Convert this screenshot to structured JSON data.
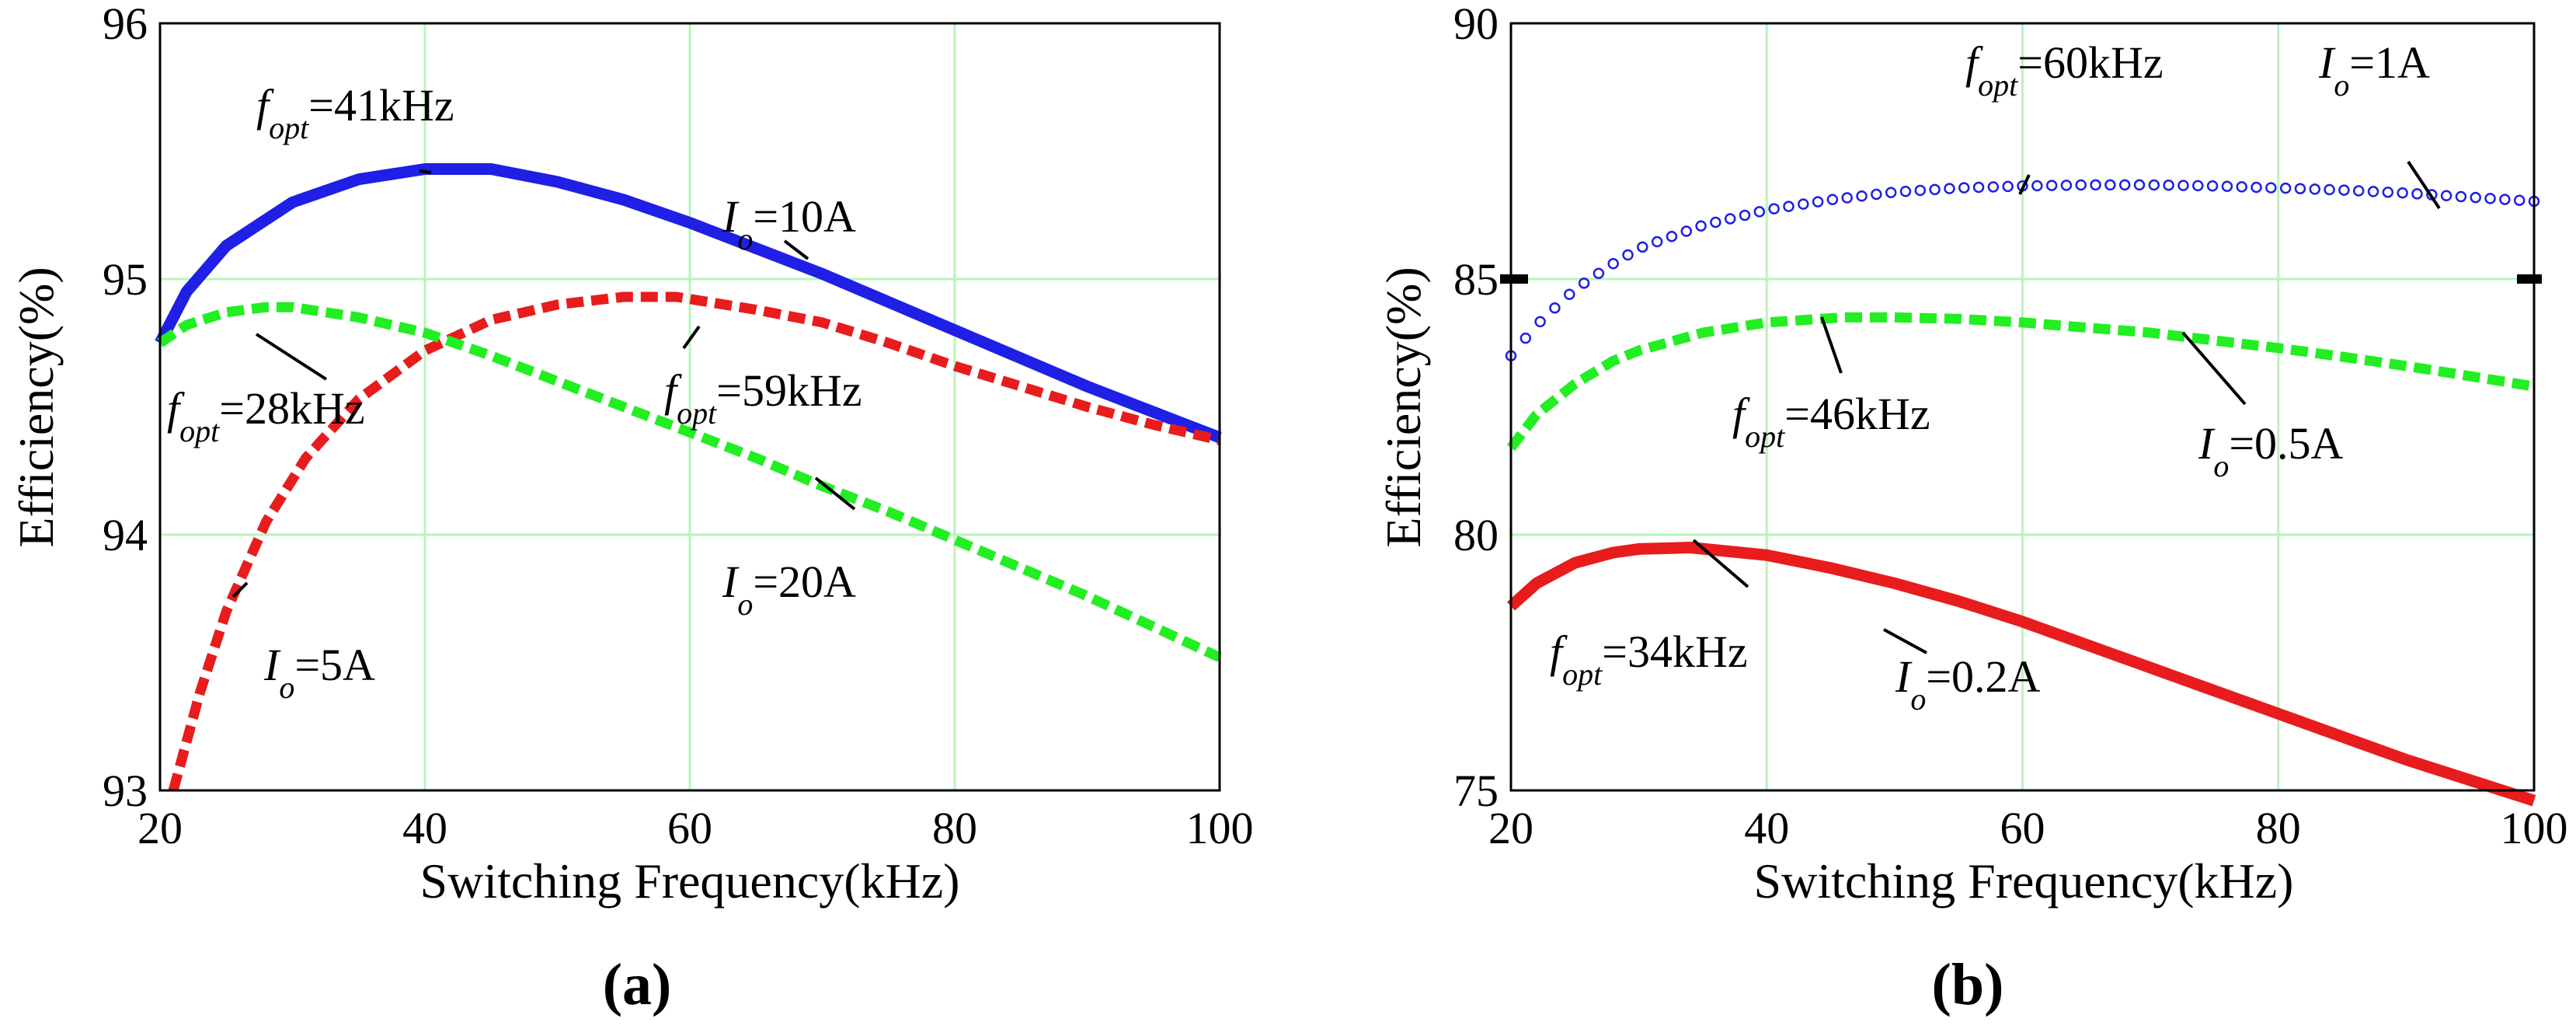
{
  "figure_label": "",
  "colors": {
    "blue": "#1f1fe6",
    "red": "#e81c1c",
    "green": "#22ee22",
    "grid": "#b8f5b8",
    "axis": "#000000"
  },
  "chart_data": [
    {
      "id": "a",
      "type": "line",
      "panel_label": "(a)",
      "xlabel": "Switching Frequency(kHz)",
      "ylabel": "Efficiency(%)",
      "xlim": [
        20,
        100
      ],
      "ylim": [
        93,
        96
      ],
      "xticks": [
        "20",
        "40",
        "60",
        "80",
        "100"
      ],
      "yticks": [
        "93",
        "94",
        "95",
        "96"
      ],
      "grid": true,
      "series": [
        {
          "name": "Io=10A",
          "style": "solid",
          "color": "blue",
          "x": [
            20,
            22,
            25,
            30,
            35,
            40,
            45,
            50,
            55,
            60,
            65,
            70,
            75,
            80,
            85,
            90,
            95,
            100
          ],
          "y": [
            94.75,
            94.95,
            95.13,
            95.3,
            95.39,
            95.43,
            95.43,
            95.38,
            95.31,
            95.22,
            95.12,
            95.02,
            94.91,
            94.8,
            94.69,
            94.58,
            94.48,
            94.38
          ]
        },
        {
          "name": "Io=5A",
          "style": "dashed",
          "color": "red",
          "x": [
            21,
            23,
            25,
            28,
            31,
            35,
            40,
            45,
            50,
            55,
            59,
            65,
            70,
            75,
            80,
            85,
            90,
            95,
            100
          ],
          "y": [
            93.0,
            93.38,
            93.7,
            94.05,
            94.3,
            94.53,
            94.72,
            94.84,
            94.9,
            94.93,
            94.93,
            94.88,
            94.83,
            94.75,
            94.66,
            94.58,
            94.5,
            94.43,
            94.37
          ]
        },
        {
          "name": "Io=20A",
          "style": "dashed",
          "color": "green",
          "x": [
            20,
            22,
            25,
            28,
            30,
            35,
            40,
            45,
            50,
            55,
            60,
            65,
            70,
            75,
            80,
            85,
            90,
            95,
            100
          ],
          "y": [
            94.75,
            94.82,
            94.87,
            94.89,
            94.89,
            94.85,
            94.79,
            94.7,
            94.6,
            94.5,
            94.4,
            94.3,
            94.19,
            94.09,
            93.98,
            93.87,
            93.76,
            93.64,
            93.52
          ]
        }
      ],
      "annotations": [
        {
          "main": "f",
          "sub": "opt",
          "tail": "=41kHz"
        },
        {
          "main": "I",
          "sub": "o",
          "tail": "=10A"
        },
        {
          "main": "f",
          "sub": "opt",
          "tail": "=28kHz"
        },
        {
          "main": "f",
          "sub": "opt",
          "tail": "=59kHz"
        },
        {
          "main": "I",
          "sub": "o",
          "tail": "=20A"
        },
        {
          "main": "I",
          "sub": "o",
          "tail": "=5A"
        }
      ]
    },
    {
      "id": "b",
      "type": "line",
      "panel_label": "(b)",
      "xlabel": "Switching Frequency(kHz)",
      "ylabel": "Efficiency(%)",
      "xlim": [
        20,
        100
      ],
      "ylim": [
        75,
        90
      ],
      "xticks": [
        "20",
        "40",
        "60",
        "80",
        "100"
      ],
      "yticks": [
        "75",
        "80",
        "85",
        "90"
      ],
      "grid": true,
      "series": [
        {
          "name": "Io=1A",
          "style": "circles",
          "color": "blue",
          "x": [
            20,
            22,
            25,
            28,
            30,
            35,
            40,
            45,
            50,
            55,
            60,
            65,
            70,
            75,
            80,
            85,
            90,
            95,
            100
          ],
          "y": [
            83.5,
            84.1,
            84.8,
            85.3,
            85.6,
            86.05,
            86.35,
            86.55,
            86.7,
            86.78,
            86.82,
            86.84,
            86.84,
            86.82,
            86.78,
            86.74,
            86.68,
            86.6,
            86.52
          ]
        },
        {
          "name": "Io=0.5A",
          "style": "dashed",
          "color": "green",
          "x": [
            20,
            22,
            25,
            28,
            30,
            35,
            40,
            46,
            50,
            55,
            60,
            65,
            70,
            75,
            80,
            85,
            90,
            95,
            100
          ],
          "y": [
            81.7,
            82.35,
            82.95,
            83.4,
            83.6,
            83.95,
            84.15,
            84.25,
            84.25,
            84.22,
            84.15,
            84.05,
            83.95,
            83.8,
            83.65,
            83.48,
            83.3,
            83.1,
            82.9
          ]
        },
        {
          "name": "Io=0.2A",
          "style": "solid",
          "color": "red",
          "x": [
            20,
            22,
            25,
            28,
            30,
            34,
            40,
            45,
            50,
            55,
            60,
            65,
            70,
            75,
            80,
            85,
            90,
            95,
            100
          ],
          "y": [
            78.6,
            79.05,
            79.45,
            79.65,
            79.72,
            79.75,
            79.6,
            79.35,
            79.05,
            78.7,
            78.3,
            77.85,
            77.4,
            76.95,
            76.5,
            76.05,
            75.6,
            75.2,
            74.8
          ]
        }
      ],
      "annotations": [
        {
          "main": "f",
          "sub": "opt",
          "tail": "=60kHz"
        },
        {
          "main": "I",
          "sub": "o",
          "tail": "=1A"
        },
        {
          "main": "f",
          "sub": "opt",
          "tail": "=46kHz"
        },
        {
          "main": "I",
          "sub": "o",
          "tail": "=0.5A"
        },
        {
          "main": "f",
          "sub": "opt",
          "tail": "=34kHz"
        },
        {
          "main": "I",
          "sub": "o",
          "tail": "=0.2A"
        }
      ]
    }
  ]
}
